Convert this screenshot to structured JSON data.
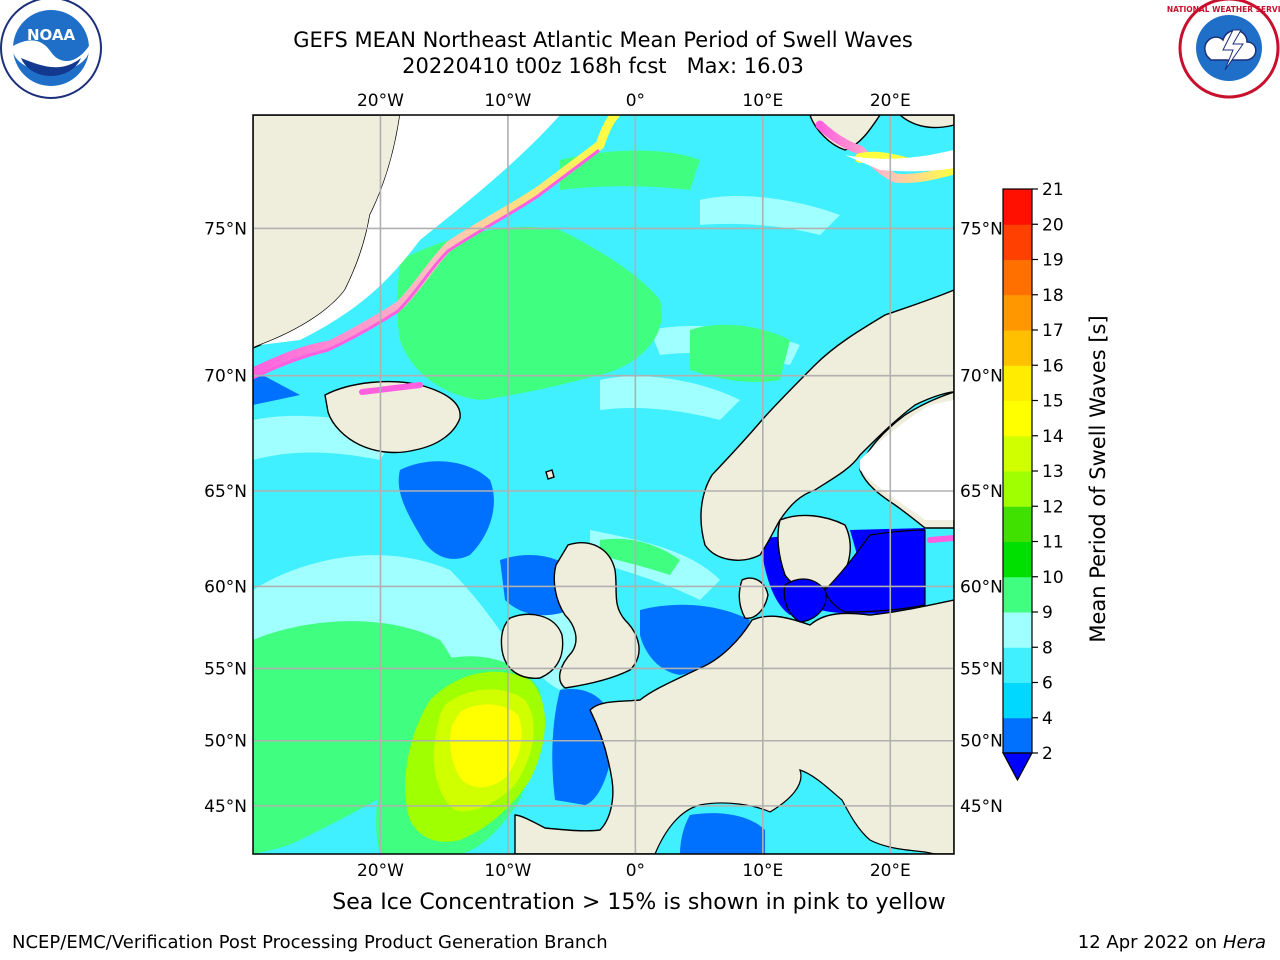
{
  "title": "GEFS MEAN Northeast Atlantic Mean Period of Swell Waves",
  "subtitle": "20220410 t00z 168h fcst   Max: 16.03",
  "map": {
    "lon_range": [
      -30,
      25
    ],
    "lat_range": [
      41,
      78
    ],
    "meridians": [
      -20,
      -10,
      0,
      10,
      20
    ],
    "parallels": [
      45,
      50,
      55,
      60,
      65,
      70,
      75
    ],
    "lon_labels": [
      "20°W",
      "10°W",
      "0°",
      "10°E",
      "20°E"
    ],
    "lat_labels": [
      "45°N",
      "50°N",
      "55°N",
      "60°N",
      "65°N",
      "70°N",
      "75°N"
    ],
    "land_color": "#efeedc",
    "grid_color": "#b0b0b0"
  },
  "colorbar": {
    "label": "Mean Period of Swell Waves [s]",
    "ticks": [
      "2",
      "4",
      "6",
      "8",
      "9",
      "10",
      "11",
      "12",
      "13",
      "14",
      "15",
      "16",
      "17",
      "18",
      "19",
      "20",
      "21"
    ],
    "colors": [
      "#0070ff",
      "#00d8ff",
      "#40f0ff",
      "#a0ffff",
      "#40ff80",
      "#00e000",
      "#40e000",
      "#a0ff00",
      "#d0ff00",
      "#ffff00",
      "#ffec00",
      "#ffc000",
      "#ff9800",
      "#ff7000",
      "#ff4000",
      "#ff1000"
    ],
    "under_color": "#0000ff",
    "extend": "min"
  },
  "subnote": "Sea Ice Concentration > 15% is shown in pink to yellow",
  "credit": "NCEP/EMC/Verification Post Processing Product Generation Branch",
  "date": {
    "text": "12 Apr 2022 on",
    "host": "Hera"
  },
  "logos": {
    "left": "NOAA",
    "right": "NATIONAL WEATHER SERVICE"
  }
}
